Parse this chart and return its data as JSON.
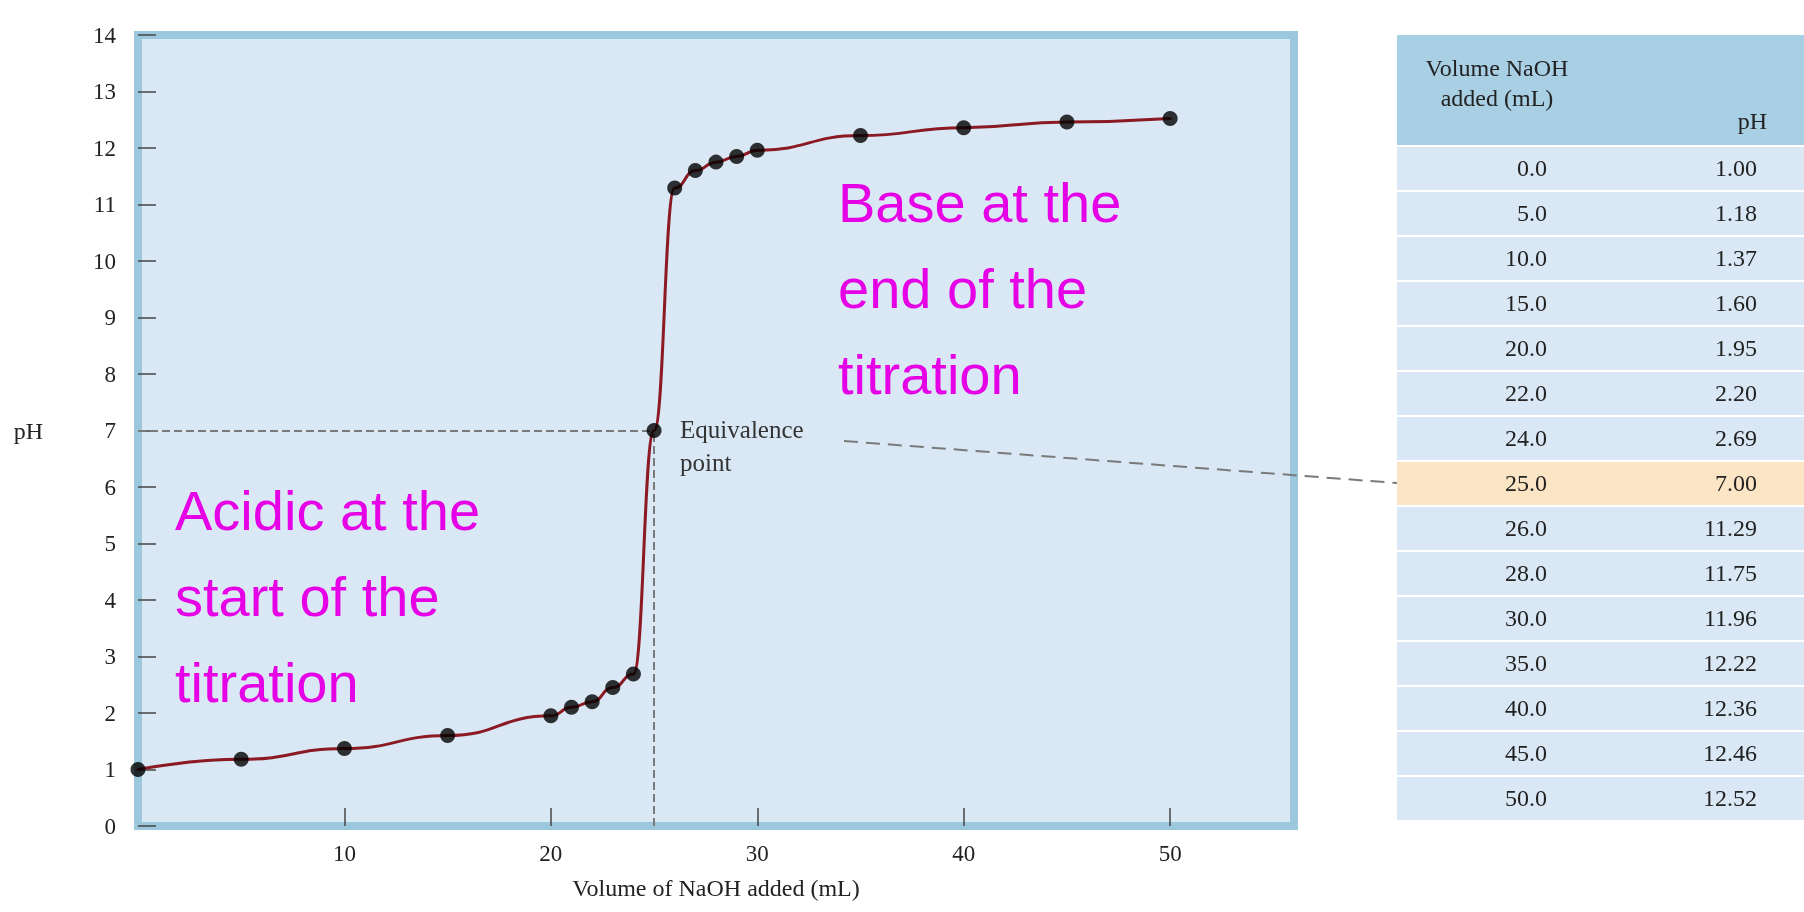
{
  "chart_data": [
    {
      "type": "line",
      "xlabel": "Volume of NaOH added (mL)",
      "ylabel": "pH",
      "xlim": [
        0,
        56
      ],
      "xticks": [
        10,
        20,
        30,
        40,
        50
      ],
      "ylim": [
        0,
        14
      ],
      "yticks": [
        0,
        1,
        2,
        3,
        4,
        5,
        6,
        7,
        8,
        9,
        10,
        11,
        12,
        13,
        14
      ],
      "series": [
        {
          "color": "#8b1a24",
          "marker": "none",
          "line_style": "solid",
          "x": [
            0,
            5,
            10,
            15,
            20,
            21,
            22,
            23,
            24,
            25,
            26,
            27,
            28,
            29,
            30,
            35,
            40,
            45,
            50
          ],
          "values": [
            1.0,
            1.18,
            1.37,
            1.6,
            1.95,
            2.1,
            2.2,
            2.45,
            2.69,
            7.0,
            11.29,
            11.6,
            11.75,
            11.85,
            11.96,
            12.22,
            12.36,
            12.46,
            12.52
          ]
        },
        {
          "type": "scatter",
          "color": "#000000",
          "marker": "circle",
          "x": [
            0,
            5,
            10,
            15,
            20,
            21,
            22,
            23,
            24,
            25,
            26,
            27,
            28,
            29,
            30,
            35,
            40,
            45,
            50
          ],
          "values": [
            1.0,
            1.18,
            1.37,
            1.6,
            1.95,
            2.1,
            2.2,
            2.45,
            2.69,
            7.0,
            11.29,
            11.6,
            11.75,
            11.85,
            11.96,
            12.22,
            12.36,
            12.46,
            12.52
          ]
        }
      ],
      "ref_lines": [
        {
          "axis": "y",
          "value": 7,
          "color": "#7a7a7a",
          "line_style": "dashed"
        },
        {
          "axis": "x",
          "value": 25,
          "color": "#7a7a7a",
          "line_style": "dashed"
        }
      ],
      "annotations": [
        {
          "text": "Equivalence point",
          "x": 25,
          "y": 7
        },
        "Acidic at the start of the titration",
        "Base at the end of the titration"
      ]
    },
    {
      "type": "other",
      "xlabel": "Volume NaOH added (mL)",
      "ylabel": "pH",
      "categories": [
        "0.0",
        "5.0",
        "10.0",
        "15.0",
        "20.0",
        "22.0",
        "24.0",
        "25.0",
        "26.0",
        "28.0",
        "30.0",
        "35.0",
        "40.0",
        "45.0",
        "50.0"
      ],
      "values": [
        1.0,
        1.18,
        1.37,
        1.6,
        1.95,
        2.2,
        2.69,
        7.0,
        11.29,
        11.75,
        11.96,
        12.22,
        12.36,
        12.46,
        12.52
      ],
      "value_labels": [
        "1.00",
        "1.18",
        "1.37",
        "1.60",
        "1.95",
        "2.20",
        "2.69",
        "7.00",
        "11.29",
        "11.75",
        "11.96",
        "12.22",
        "12.36",
        "12.46",
        "12.52"
      ]
    }
  ]
}
